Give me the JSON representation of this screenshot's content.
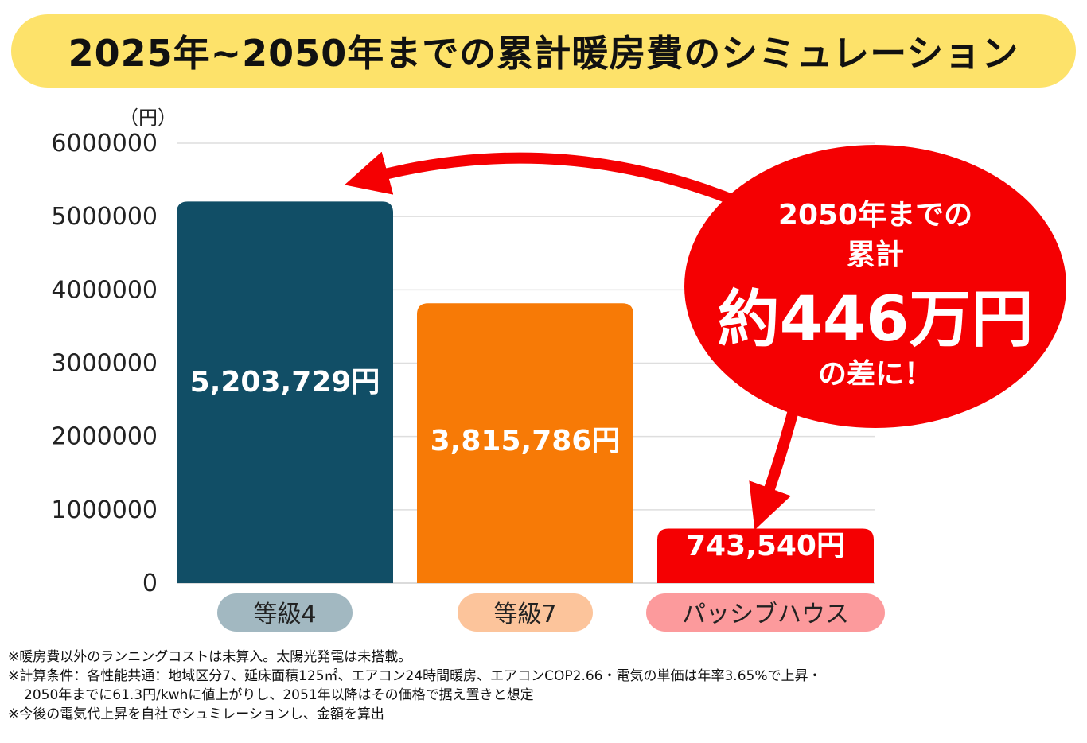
{
  "title": "2025年~2050年までの累計暖房費のシミュレーション",
  "unit_label": "（円）",
  "chart_data": {
    "type": "bar",
    "categories": [
      "等級4",
      "等級7",
      "パッシブハウス"
    ],
    "values": [
      5203729,
      3815786,
      743540
    ],
    "value_labels": [
      "5,203,729円",
      "3,815,786円",
      "743,540円"
    ],
    "bar_colors": [
      "#114e66",
      "#f77a06",
      "#f50002"
    ],
    "category_pill_colors": [
      "#a2b8c1",
      "#fcc49b",
      "#fc9a9c"
    ],
    "ylim": [
      0,
      6000000
    ],
    "yticks": [
      "0",
      "1000000",
      "2000000",
      "3000000",
      "4000000",
      "5000000",
      "6000000"
    ],
    "grid": true,
    "xlabel": "",
    "ylabel": ""
  },
  "callout": {
    "line1": "2050年までの",
    "line2": "累計",
    "line3": "約446万円",
    "line4": "の差に！",
    "color": "#f50002"
  },
  "notes": [
    "※暖房費以外のランニングコストは未算入。太陽光発電は未搭載。",
    "※計算条件：各性能共通：地域区分7、延床面積125㎡、エアコン24時間暖房、エアコンCOP2.66・電気の単価は年率3.65%で上昇・",
    "2050年までに61.3円/kwhに値上がりし、2051年以降はその価格で据え置きと想定",
    "※今後の電気代上昇を自社でシュミレーションし、金額を算出"
  ]
}
